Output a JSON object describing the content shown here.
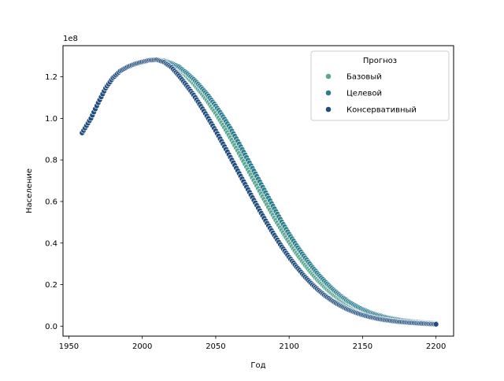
{
  "chart_data": {
    "type": "scatter",
    "title": "",
    "xlabel": "Год",
    "ylabel": "Население",
    "y_multiplier_label": "1e8",
    "xlim": [
      1946,
      2212
    ],
    "ylim": [
      -4800000,
      135000000
    ],
    "xticks": [
      1950,
      2000,
      2050,
      2100,
      2150,
      2200
    ],
    "xtick_labels": [
      "1950",
      "2000",
      "2050",
      "2100",
      "2150",
      "2200"
    ],
    "yticks": [
      0,
      20000000,
      40000000,
      60000000,
      80000000,
      100000000,
      120000000
    ],
    "ytick_labels": [
      "0.0",
      "0.2",
      "0.4",
      "0.6",
      "0.8",
      "1.0",
      "1.2"
    ],
    "grid": false,
    "legend": {
      "title": "Прогноз",
      "placement": "top-right"
    },
    "x_step": 1,
    "series": [
      {
        "name": "Базовый",
        "color": "#5aa88f",
        "x_range": [
          1959,
          2200
        ],
        "points": [
          [
            1959,
            93000000
          ],
          [
            1965,
            100000000
          ],
          [
            1970,
            107500000
          ],
          [
            1975,
            114500000
          ],
          [
            1980,
            119500000
          ],
          [
            1985,
            122800000
          ],
          [
            1990,
            124800000
          ],
          [
            1995,
            126200000
          ],
          [
            2000,
            127200000
          ],
          [
            2005,
            128000000
          ],
          [
            2010,
            128200000
          ],
          [
            2015,
            127500000
          ],
          [
            2020,
            126300000
          ],
          [
            2025,
            124000000
          ],
          [
            2030,
            120500000
          ],
          [
            2035,
            116800000
          ],
          [
            2040,
            112500000
          ],
          [
            2045,
            107800000
          ],
          [
            2050,
            102500000
          ],
          [
            2055,
            96800000
          ],
          [
            2060,
            90800000
          ],
          [
            2065,
            84500000
          ],
          [
            2070,
            78000000
          ],
          [
            2075,
            71500000
          ],
          [
            2080,
            65000000
          ],
          [
            2085,
            58500000
          ],
          [
            2090,
            52200000
          ],
          [
            2095,
            46200000
          ],
          [
            2100,
            40500000
          ],
          [
            2105,
            35200000
          ],
          [
            2110,
            30300000
          ],
          [
            2115,
            25800000
          ],
          [
            2120,
            21800000
          ],
          [
            2125,
            18300000
          ],
          [
            2130,
            15200000
          ],
          [
            2135,
            12600000
          ],
          [
            2140,
            10300000
          ],
          [
            2145,
            8400000
          ],
          [
            2150,
            6800000
          ],
          [
            2155,
            5500000
          ],
          [
            2160,
            4500000
          ],
          [
            2165,
            3600000
          ],
          [
            2170,
            2900000
          ],
          [
            2175,
            2400000
          ],
          [
            2180,
            2000000
          ],
          [
            2185,
            1700000
          ],
          [
            2190,
            1500000
          ],
          [
            2195,
            1300000
          ],
          [
            2200,
            1100000
          ]
        ]
      },
      {
        "name": "Целевой",
        "color": "#2a7f8e",
        "x_range": [
          1959,
          2200
        ],
        "points": [
          [
            1959,
            93000000
          ],
          [
            1965,
            100000000
          ],
          [
            1970,
            107500000
          ],
          [
            1975,
            114500000
          ],
          [
            1980,
            119500000
          ],
          [
            1985,
            122800000
          ],
          [
            1990,
            124800000
          ],
          [
            1995,
            126200000
          ],
          [
            2000,
            127200000
          ],
          [
            2005,
            128000000
          ],
          [
            2010,
            128200000
          ],
          [
            2015,
            127700000
          ],
          [
            2020,
            126500000
          ],
          [
            2025,
            124800000
          ],
          [
            2030,
            122000000
          ],
          [
            2035,
            118800000
          ],
          [
            2040,
            115000000
          ],
          [
            2045,
            110800000
          ],
          [
            2050,
            106000000
          ],
          [
            2055,
            100800000
          ],
          [
            2060,
            95200000
          ],
          [
            2065,
            89000000
          ],
          [
            2070,
            82500000
          ],
          [
            2075,
            76000000
          ],
          [
            2080,
            69500000
          ],
          [
            2085,
            63000000
          ],
          [
            2090,
            56500000
          ],
          [
            2095,
            50200000
          ],
          [
            2100,
            44300000
          ],
          [
            2105,
            38800000
          ],
          [
            2110,
            33800000
          ],
          [
            2115,
            29100000
          ],
          [
            2120,
            24800000
          ],
          [
            2125,
            21000000
          ],
          [
            2130,
            17600000
          ],
          [
            2135,
            14600000
          ],
          [
            2140,
            12000000
          ],
          [
            2145,
            9900000
          ],
          [
            2150,
            8100000
          ],
          [
            2155,
            6600000
          ],
          [
            2160,
            5400000
          ],
          [
            2165,
            4400000
          ],
          [
            2170,
            3600000
          ],
          [
            2175,
            3000000
          ],
          [
            2180,
            2500000
          ],
          [
            2185,
            2100000
          ],
          [
            2190,
            1800000
          ],
          [
            2195,
            1500000
          ],
          [
            2200,
            1300000
          ]
        ]
      },
      {
        "name": "Консервативный",
        "color": "#1e4d80",
        "x_range": [
          1959,
          2200
        ],
        "points": [
          [
            1959,
            93000000
          ],
          [
            1965,
            100000000
          ],
          [
            1970,
            107500000
          ],
          [
            1975,
            114500000
          ],
          [
            1980,
            119500000
          ],
          [
            1985,
            122800000
          ],
          [
            1990,
            124800000
          ],
          [
            1995,
            126200000
          ],
          [
            2000,
            127200000
          ],
          [
            2005,
            128000000
          ],
          [
            2010,
            128200000
          ],
          [
            2015,
            127000000
          ],
          [
            2020,
            124500000
          ],
          [
            2025,
            120500000
          ],
          [
            2030,
            116000000
          ],
          [
            2035,
            111200000
          ],
          [
            2040,
            105800000
          ],
          [
            2045,
            100000000
          ],
          [
            2050,
            94000000
          ],
          [
            2055,
            87700000
          ],
          [
            2060,
            81300000
          ],
          [
            2065,
            74800000
          ],
          [
            2070,
            68300000
          ],
          [
            2075,
            61900000
          ],
          [
            2080,
            55600000
          ],
          [
            2085,
            49500000
          ],
          [
            2090,
            43700000
          ],
          [
            2095,
            38200000
          ],
          [
            2100,
            33200000
          ],
          [
            2105,
            28600000
          ],
          [
            2110,
            24400000
          ],
          [
            2115,
            20600000
          ],
          [
            2120,
            17300000
          ],
          [
            2125,
            14400000
          ],
          [
            2130,
            11900000
          ],
          [
            2135,
            9800000
          ],
          [
            2140,
            8000000
          ],
          [
            2145,
            6600000
          ],
          [
            2150,
            5400000
          ],
          [
            2155,
            4400000
          ],
          [
            2160,
            3600000
          ],
          [
            2165,
            3000000
          ],
          [
            2170,
            2500000
          ],
          [
            2175,
            2100000
          ],
          [
            2180,
            1800000
          ],
          [
            2185,
            1500000
          ],
          [
            2190,
            1300000
          ],
          [
            2195,
            1100000
          ],
          [
            2200,
            900000
          ]
        ]
      }
    ]
  }
}
